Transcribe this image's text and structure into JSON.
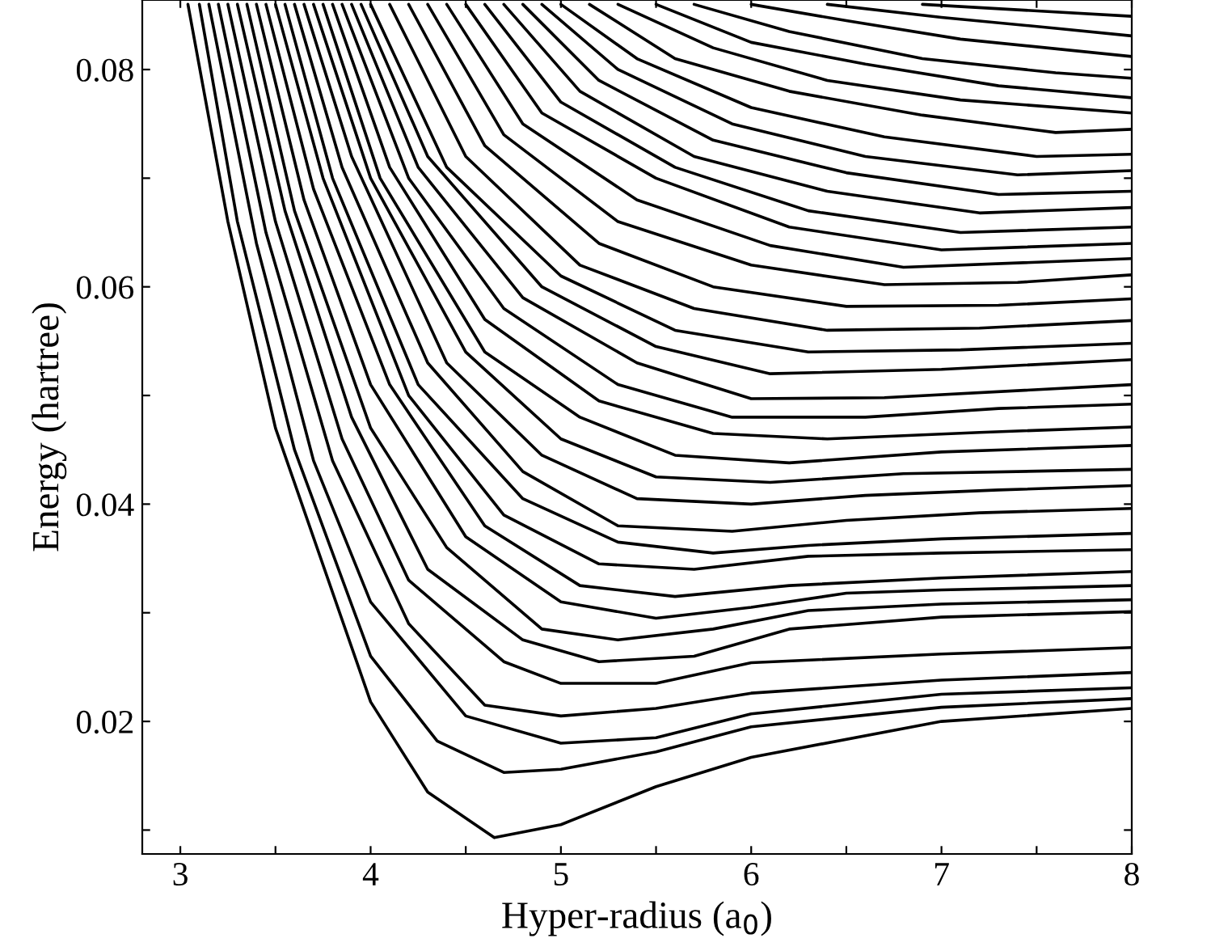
{
  "chart_data": {
    "type": "line",
    "xlabel": "Hyper-radius (a$_{0}$)",
    "ylabel": "Energy (hartree)",
    "xlim": [
      2.8,
      8
    ],
    "ylim": [
      0.0078,
      0.0864
    ],
    "xticks": [
      3,
      {
        "value": 3.5,
        "label": null
      },
      4,
      {
        "value": 4.5,
        "label": null
      },
      5,
      {
        "value": 5.5,
        "label": null
      },
      6,
      {
        "value": 6.5,
        "label": null
      },
      7,
      {
        "value": 7.5,
        "label": null
      },
      8
    ],
    "yticks": [
      {
        "value": 0.01,
        "label": null
      },
      0.02,
      {
        "value": 0.03,
        "label": null
      },
      0.04,
      {
        "value": 0.05,
        "label": null
      },
      0.06,
      {
        "value": 0.07,
        "label": null
      },
      0.08
    ],
    "grid": false,
    "line_style": "solid",
    "series": [
      {
        "color": "#000000",
        "x": [
          3.04,
          3.25,
          3.5,
          4,
          4.3,
          4.65,
          5,
          5.5,
          6,
          7,
          8
        ],
        "values": [
          0.086,
          0.066,
          0.047,
          0.0218,
          0.0135,
          0.0093,
          0.0105,
          0.014,
          0.0167,
          0.02,
          0.0212
        ]
      },
      {
        "color": "#000000",
        "x": [
          3.1,
          3.3,
          3.6,
          4,
          4.35,
          4.7,
          5,
          5.5,
          6,
          7,
          8
        ],
        "values": [
          0.086,
          0.066,
          0.045,
          0.026,
          0.0182,
          0.0153,
          0.0156,
          0.0172,
          0.0195,
          0.0213,
          0.0221
        ]
      },
      {
        "color": "#000000",
        "x": [
          3.15,
          3.4,
          3.7,
          4,
          4.5,
          5,
          5.5,
          6,
          7,
          8
        ],
        "values": [
          0.086,
          0.064,
          0.044,
          0.031,
          0.0205,
          0.018,
          0.0185,
          0.0207,
          0.0225,
          0.0231
        ]
      },
      {
        "color": "#000000",
        "x": [
          3.2,
          3.45,
          3.8,
          4.2,
          4.6,
          5,
          5.5,
          6,
          7,
          8
        ],
        "values": [
          0.086,
          0.065,
          0.044,
          0.029,
          0.0215,
          0.0205,
          0.0212,
          0.0226,
          0.0238,
          0.0245
        ]
      },
      {
        "color": "#000000",
        "x": [
          3.25,
          3.5,
          3.85,
          4.2,
          4.7,
          5,
          5.5,
          6,
          7,
          8
        ],
        "values": [
          0.086,
          0.066,
          0.046,
          0.033,
          0.0255,
          0.0235,
          0.0235,
          0.0254,
          0.0262,
          0.0268
        ]
      },
      {
        "color": "#000000",
        "x": [
          3.3,
          3.55,
          3.9,
          4.3,
          4.8,
          5.2,
          5.7,
          6.2,
          7,
          8
        ],
        "values": [
          0.086,
          0.067,
          0.048,
          0.034,
          0.0275,
          0.0255,
          0.026,
          0.0285,
          0.0296,
          0.0301
        ]
      },
      {
        "color": "#000000",
        "x": [
          3.35,
          3.6,
          4,
          4.4,
          4.9,
          5.3,
          5.8,
          6.3,
          7,
          8
        ],
        "values": [
          0.086,
          0.067,
          0.047,
          0.036,
          0.0285,
          0.0275,
          0.0285,
          0.0302,
          0.0308,
          0.0312
        ]
      },
      {
        "color": "#000000",
        "x": [
          3.4,
          3.65,
          4,
          4.5,
          5,
          5.5,
          6,
          6.5,
          7,
          8
        ],
        "values": [
          0.086,
          0.068,
          0.051,
          0.037,
          0.031,
          0.0295,
          0.0305,
          0.0318,
          0.0321,
          0.0325
        ]
      },
      {
        "color": "#000000",
        "x": [
          3.45,
          3.7,
          4.1,
          4.6,
          5.1,
          5.6,
          6.2,
          7,
          8
        ],
        "values": [
          0.086,
          0.069,
          0.051,
          0.038,
          0.0325,
          0.0315,
          0.0325,
          0.0332,
          0.0338
        ]
      },
      {
        "color": "#000000",
        "x": [
          3.5,
          3.75,
          4.2,
          4.7,
          5.2,
          5.7,
          6.3,
          7,
          8
        ],
        "values": [
          0.086,
          0.07,
          0.05,
          0.039,
          0.0345,
          0.034,
          0.0352,
          0.0355,
          0.0358
        ]
      },
      {
        "color": "#000000",
        "x": [
          3.55,
          3.8,
          4.25,
          4.8,
          5.3,
          5.8,
          6.3,
          7,
          8
        ],
        "values": [
          0.086,
          0.07,
          0.051,
          0.0405,
          0.0365,
          0.0355,
          0.0362,
          0.0368,
          0.0373
        ]
      },
      {
        "color": "#000000",
        "x": [
          3.6,
          3.85,
          4.3,
          4.8,
          5.3,
          5.9,
          6.5,
          7.2,
          8
        ],
        "values": [
          0.086,
          0.071,
          0.053,
          0.043,
          0.038,
          0.0375,
          0.0385,
          0.0392,
          0.0396
        ]
      },
      {
        "color": "#000000",
        "x": [
          3.65,
          3.9,
          4.4,
          4.9,
          5.4,
          6,
          6.6,
          7.3,
          8
        ],
        "values": [
          0.086,
          0.072,
          0.053,
          0.0445,
          0.0405,
          0.04,
          0.0408,
          0.0413,
          0.0417
        ]
      },
      {
        "color": "#000000",
        "x": [
          3.7,
          4,
          4.5,
          5,
          5.5,
          6.1,
          6.8,
          8
        ],
        "values": [
          0.086,
          0.07,
          0.054,
          0.046,
          0.0425,
          0.042,
          0.0428,
          0.0432
        ]
      },
      {
        "color": "#000000",
        "x": [
          3.75,
          4.05,
          4.6,
          5.1,
          5.6,
          6.2,
          7,
          8
        ],
        "values": [
          0.086,
          0.07,
          0.054,
          0.048,
          0.0445,
          0.0438,
          0.0448,
          0.0454
        ]
      },
      {
        "color": "#000000",
        "x": [
          3.8,
          4.1,
          4.6,
          5.2,
          5.8,
          6.4,
          7.2,
          8
        ],
        "values": [
          0.086,
          0.071,
          0.057,
          0.0495,
          0.0465,
          0.046,
          0.0466,
          0.0471
        ]
      },
      {
        "color": "#000000",
        "x": [
          3.85,
          4.2,
          4.7,
          5.3,
          5.9,
          6.6,
          7.3,
          8
        ],
        "values": [
          0.086,
          0.07,
          0.058,
          0.051,
          0.048,
          0.048,
          0.0488,
          0.0492
        ]
      },
      {
        "color": "#000000",
        "x": [
          3.9,
          4.25,
          4.8,
          5.4,
          6,
          6.7,
          8
        ],
        "values": [
          0.086,
          0.071,
          0.059,
          0.053,
          0.0497,
          0.0498,
          0.051
        ]
      },
      {
        "color": "#000000",
        "x": [
          3.95,
          4.3,
          4.9,
          5.5,
          6.1,
          7,
          8
        ],
        "values": [
          0.086,
          0.072,
          0.06,
          0.0545,
          0.052,
          0.0524,
          0.0533
        ]
      },
      {
        "color": "#000000",
        "x": [
          4.0,
          4.4,
          5,
          5.6,
          6.3,
          7.1,
          8
        ],
        "values": [
          0.086,
          0.071,
          0.061,
          0.056,
          0.054,
          0.0542,
          0.0548
        ]
      },
      {
        "color": "#000000",
        "x": [
          4.1,
          4.5,
          5.1,
          5.7,
          6.4,
          7.2,
          8
        ],
        "values": [
          0.086,
          0.072,
          0.062,
          0.058,
          0.056,
          0.0562,
          0.0569
        ]
      },
      {
        "color": "#000000",
        "x": [
          4.2,
          4.6,
          5.2,
          5.8,
          6.5,
          7.3,
          8
        ],
        "values": [
          0.086,
          0.073,
          0.064,
          0.06,
          0.0582,
          0.0583,
          0.0589
        ]
      },
      {
        "color": "#000000",
        "x": [
          4.3,
          4.7,
          5.3,
          6,
          6.7,
          7.4,
          8
        ],
        "values": [
          0.086,
          0.074,
          0.066,
          0.062,
          0.0602,
          0.0604,
          0.0611
        ]
      },
      {
        "color": "#000000",
        "x": [
          4.4,
          4.8,
          5.4,
          6.1,
          6.8,
          8
        ],
        "values": [
          0.086,
          0.075,
          0.068,
          0.0638,
          0.0618,
          0.0626
        ]
      },
      {
        "color": "#000000",
        "x": [
          4.5,
          4.9,
          5.5,
          6.2,
          7,
          8
        ],
        "values": [
          0.086,
          0.076,
          0.07,
          0.0655,
          0.0634,
          0.064
        ]
      },
      {
        "color": "#000000",
        "x": [
          4.6,
          5,
          5.6,
          6.3,
          7.1,
          8
        ],
        "values": [
          0.086,
          0.077,
          0.071,
          0.067,
          0.065,
          0.0655
        ]
      },
      {
        "color": "#000000",
        "x": [
          4.7,
          5.1,
          5.7,
          6.4,
          7.2,
          8
        ],
        "values": [
          0.086,
          0.078,
          0.072,
          0.0688,
          0.0668,
          0.0673
        ]
      },
      {
        "color": "#000000",
        "x": [
          4.8,
          5.2,
          5.8,
          6.5,
          7.3,
          8
        ],
        "values": [
          0.086,
          0.079,
          0.0735,
          0.0705,
          0.0685,
          0.0688
        ]
      },
      {
        "color": "#000000",
        "x": [
          4.9,
          5.3,
          5.9,
          6.6,
          7.4,
          8
        ],
        "values": [
          0.086,
          0.08,
          0.075,
          0.072,
          0.0703,
          0.0707
        ]
      },
      {
        "color": "#000000",
        "x": [
          5.0,
          5.4,
          6,
          6.7,
          7.5,
          8
        ],
        "values": [
          0.086,
          0.081,
          0.0765,
          0.0738,
          0.072,
          0.0722
        ]
      },
      {
        "color": "#000000",
        "x": [
          5.15,
          5.6,
          6.2,
          6.9,
          7.6,
          8
        ],
        "values": [
          0.086,
          0.081,
          0.078,
          0.0758,
          0.0742,
          0.0745
        ]
      },
      {
        "color": "#000000",
        "x": [
          5.3,
          5.8,
          6.4,
          7.1,
          8
        ],
        "values": [
          0.086,
          0.082,
          0.079,
          0.0772,
          0.076
        ]
      },
      {
        "color": "#000000",
        "x": [
          5.5,
          6,
          6.6,
          7.3,
          8
        ],
        "values": [
          0.086,
          0.0825,
          0.0805,
          0.0785,
          0.0774
        ]
      },
      {
        "color": "#000000",
        "x": [
          5.7,
          6.2,
          6.9,
          7.6,
          8
        ],
        "values": [
          0.086,
          0.0835,
          0.081,
          0.0797,
          0.0792
        ]
      },
      {
        "color": "#000000",
        "x": [
          6.0,
          6.5,
          7.1,
          8
        ],
        "values": [
          0.086,
          0.0845,
          0.0828,
          0.0812
        ]
      },
      {
        "color": "#000000",
        "x": [
          6.4,
          7,
          7.6,
          8
        ],
        "values": [
          0.086,
          0.0848,
          0.0838,
          0.0831
        ]
      },
      {
        "color": "#000000",
        "x": [
          6.9,
          7.4,
          8
        ],
        "values": [
          0.086,
          0.0855,
          0.0849
        ]
      }
    ]
  }
}
